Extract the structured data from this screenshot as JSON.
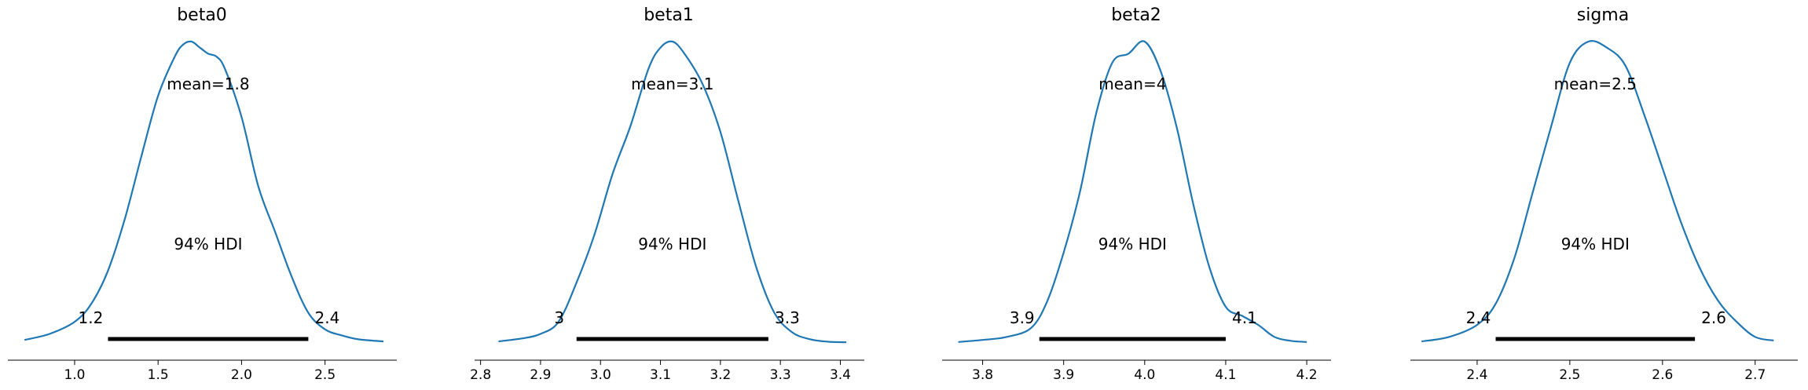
{
  "colors": {
    "density": "#1f77b4",
    "hdi": "#000000",
    "axis": "#000000"
  },
  "chart_data": [
    {
      "type": "line",
      "title": "beta0",
      "mean_label": "mean=1.8",
      "hdi_label": "94% HDI",
      "hdi": [
        1.2,
        2.4
      ],
      "hdi_low_label": "1.2",
      "hdi_high_label": "2.4",
      "xlim": [
        0.6,
        2.93
      ],
      "xticks": [
        1.0,
        1.5,
        2.0,
        2.5
      ],
      "xtick_labels": [
        "1.0",
        "1.5",
        "2.0",
        "2.5"
      ],
      "series": [
        {
          "x": [
            0.7,
            0.85,
            1.0,
            1.1,
            1.2,
            1.3,
            1.4,
            1.5,
            1.6,
            1.65,
            1.7,
            1.75,
            1.8,
            1.85,
            1.9,
            2.0,
            2.1,
            2.2,
            2.3,
            2.4,
            2.5,
            2.6,
            2.7,
            2.85
          ],
          "y": [
            0.01,
            0.03,
            0.07,
            0.13,
            0.24,
            0.41,
            0.62,
            0.82,
            0.95,
            0.99,
            1.0,
            0.98,
            0.96,
            0.95,
            0.91,
            0.75,
            0.52,
            0.37,
            0.22,
            0.1,
            0.045,
            0.025,
            0.012,
            0.005
          ]
        }
      ]
    },
    {
      "type": "line",
      "title": "beta1",
      "mean_label": "mean=3.1",
      "hdi_label": "94% HDI",
      "hdi": [
        2.96,
        3.28
      ],
      "hdi_low_label": "3",
      "hdi_high_label": "3.3",
      "xlim": [
        2.79,
        3.44
      ],
      "xticks": [
        2.8,
        2.9,
        3.0,
        3.1,
        3.2,
        3.3,
        3.4
      ],
      "xtick_labels": [
        "2.8",
        "2.9",
        "3.0",
        "3.1",
        "3.2",
        "3.3",
        "3.4"
      ],
      "series": [
        {
          "x": [
            2.83,
            2.87,
            2.9,
            2.93,
            2.96,
            2.99,
            3.02,
            3.05,
            3.08,
            3.1,
            3.12,
            3.14,
            3.17,
            3.2,
            3.23,
            3.26,
            3.29,
            3.32,
            3.35,
            3.38,
            3.41
          ],
          "y": [
            0.005,
            0.015,
            0.03,
            0.07,
            0.2,
            0.36,
            0.56,
            0.72,
            0.91,
            0.98,
            1.0,
            0.96,
            0.86,
            0.7,
            0.47,
            0.25,
            0.1,
            0.035,
            0.012,
            0.004,
            0.002
          ]
        }
      ]
    },
    {
      "type": "line",
      "title": "beta2",
      "mean_label": "mean=4",
      "hdi_label": "94% HDI",
      "hdi": [
        3.87,
        4.1
      ],
      "hdi_low_label": "3.9",
      "hdi_high_label": "4.1",
      "xlim": [
        3.75,
        4.23
      ],
      "xticks": [
        3.8,
        3.9,
        4.0,
        4.1,
        4.2
      ],
      "xtick_labels": [
        "3.8",
        "3.9",
        "4.0",
        "4.1",
        "4.2"
      ],
      "series": [
        {
          "x": [
            3.77,
            3.8,
            3.83,
            3.86,
            3.88,
            3.9,
            3.92,
            3.94,
            3.96,
            3.98,
            4.0,
            4.02,
            4.04,
            4.06,
            4.08,
            4.1,
            4.12,
            4.14,
            4.16,
            4.18,
            4.2
          ],
          "y": [
            0.003,
            0.01,
            0.02,
            0.05,
            0.14,
            0.3,
            0.5,
            0.76,
            0.93,
            0.96,
            1.0,
            0.9,
            0.71,
            0.46,
            0.25,
            0.12,
            0.09,
            0.06,
            0.02,
            0.007,
            0.003
          ]
        }
      ]
    },
    {
      "type": "line",
      "title": "sigma",
      "mean_label": "mean=2.5",
      "hdi_label": "94% HDI",
      "hdi": [
        2.42,
        2.635
      ],
      "hdi_low_label": "2.4",
      "hdi_high_label": "2.6",
      "xlim": [
        2.328,
        2.746
      ],
      "xticks": [
        2.4,
        2.5,
        2.6,
        2.7
      ],
      "xtick_labels": [
        "2.4",
        "2.5",
        "2.6",
        "2.7"
      ],
      "series": [
        {
          "x": [
            2.34,
            2.37,
            2.4,
            2.42,
            2.44,
            2.46,
            2.48,
            2.5,
            2.52,
            2.54,
            2.56,
            2.58,
            2.6,
            2.62,
            2.64,
            2.66,
            2.68,
            2.7,
            2.72
          ],
          "y": [
            0.005,
            0.02,
            0.06,
            0.13,
            0.28,
            0.5,
            0.72,
            0.93,
            1.0,
            0.98,
            0.92,
            0.76,
            0.58,
            0.4,
            0.25,
            0.14,
            0.07,
            0.02,
            0.008
          ]
        }
      ]
    }
  ]
}
